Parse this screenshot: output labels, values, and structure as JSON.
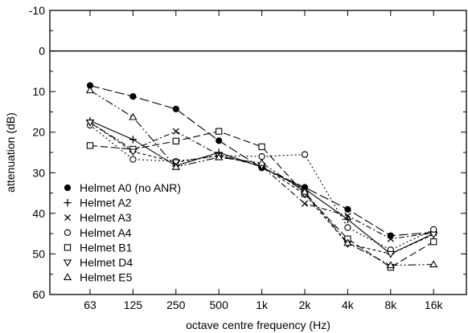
{
  "chart_data": {
    "type": "line",
    "xlabel": "octave centre frequency (Hz)",
    "ylabel": "attenuation (dB)",
    "categories": [
      "63",
      "125",
      "250",
      "500",
      "1k",
      "2k",
      "4k",
      "8k",
      "16k"
    ],
    "ylim": [
      -10,
      60
    ],
    "y_inverted": true,
    "y_ticks": [
      "-10",
      "0",
      "10",
      "20",
      "30",
      "40",
      "50",
      "60"
    ],
    "reference_line": 0,
    "grid": false,
    "legend_position": "left",
    "series": [
      {
        "name": "Helmet A0 (no ANR)",
        "marker": "filled-circle",
        "dash": "12,4",
        "values": [
          8.5,
          11.2,
          14.3,
          22.1,
          28.8,
          33.6,
          39.0,
          45.5,
          44.7
        ]
      },
      {
        "name": "Helmet A2",
        "marker": "plus",
        "dash": "",
        "values": [
          17.2,
          21.8,
          28.3,
          25.0,
          28.6,
          34.0,
          41.5,
          50.0,
          45.0
        ]
      },
      {
        "name": "Helmet A3",
        "marker": "cross",
        "dash": "7,3,2,3",
        "values": [
          17.6,
          24.3,
          19.8,
          25.6,
          28.4,
          37.6,
          40.6,
          46.3,
          44.8
        ]
      },
      {
        "name": "Helmet A4",
        "marker": "open-circle",
        "dash": "2,3",
        "values": [
          18.3,
          26.7,
          27.2,
          25.8,
          26.0,
          25.5,
          43.5,
          49.0,
          44.0
        ]
      },
      {
        "name": "Helmet B1",
        "marker": "open-square",
        "dash": "9,4",
        "values": [
          23.3,
          24.2,
          22.2,
          19.8,
          23.6,
          35.2,
          46.3,
          53.3,
          47.0
        ]
      },
      {
        "name": "Helmet D4",
        "marker": "open-triangle-down",
        "dash": "4,3",
        "values": [
          17.6,
          24.8,
          27.4,
          25.8,
          28.3,
          35.3,
          47.5,
          50.0,
          45.2
        ]
      },
      {
        "name": "Helmet E5",
        "marker": "open-triangle-up",
        "dash": "10,3,2,3,2,3",
        "values": [
          9.7,
          16.3,
          28.6,
          26.2,
          27.6,
          34.7,
          47.3,
          52.8,
          52.6
        ]
      }
    ]
  }
}
